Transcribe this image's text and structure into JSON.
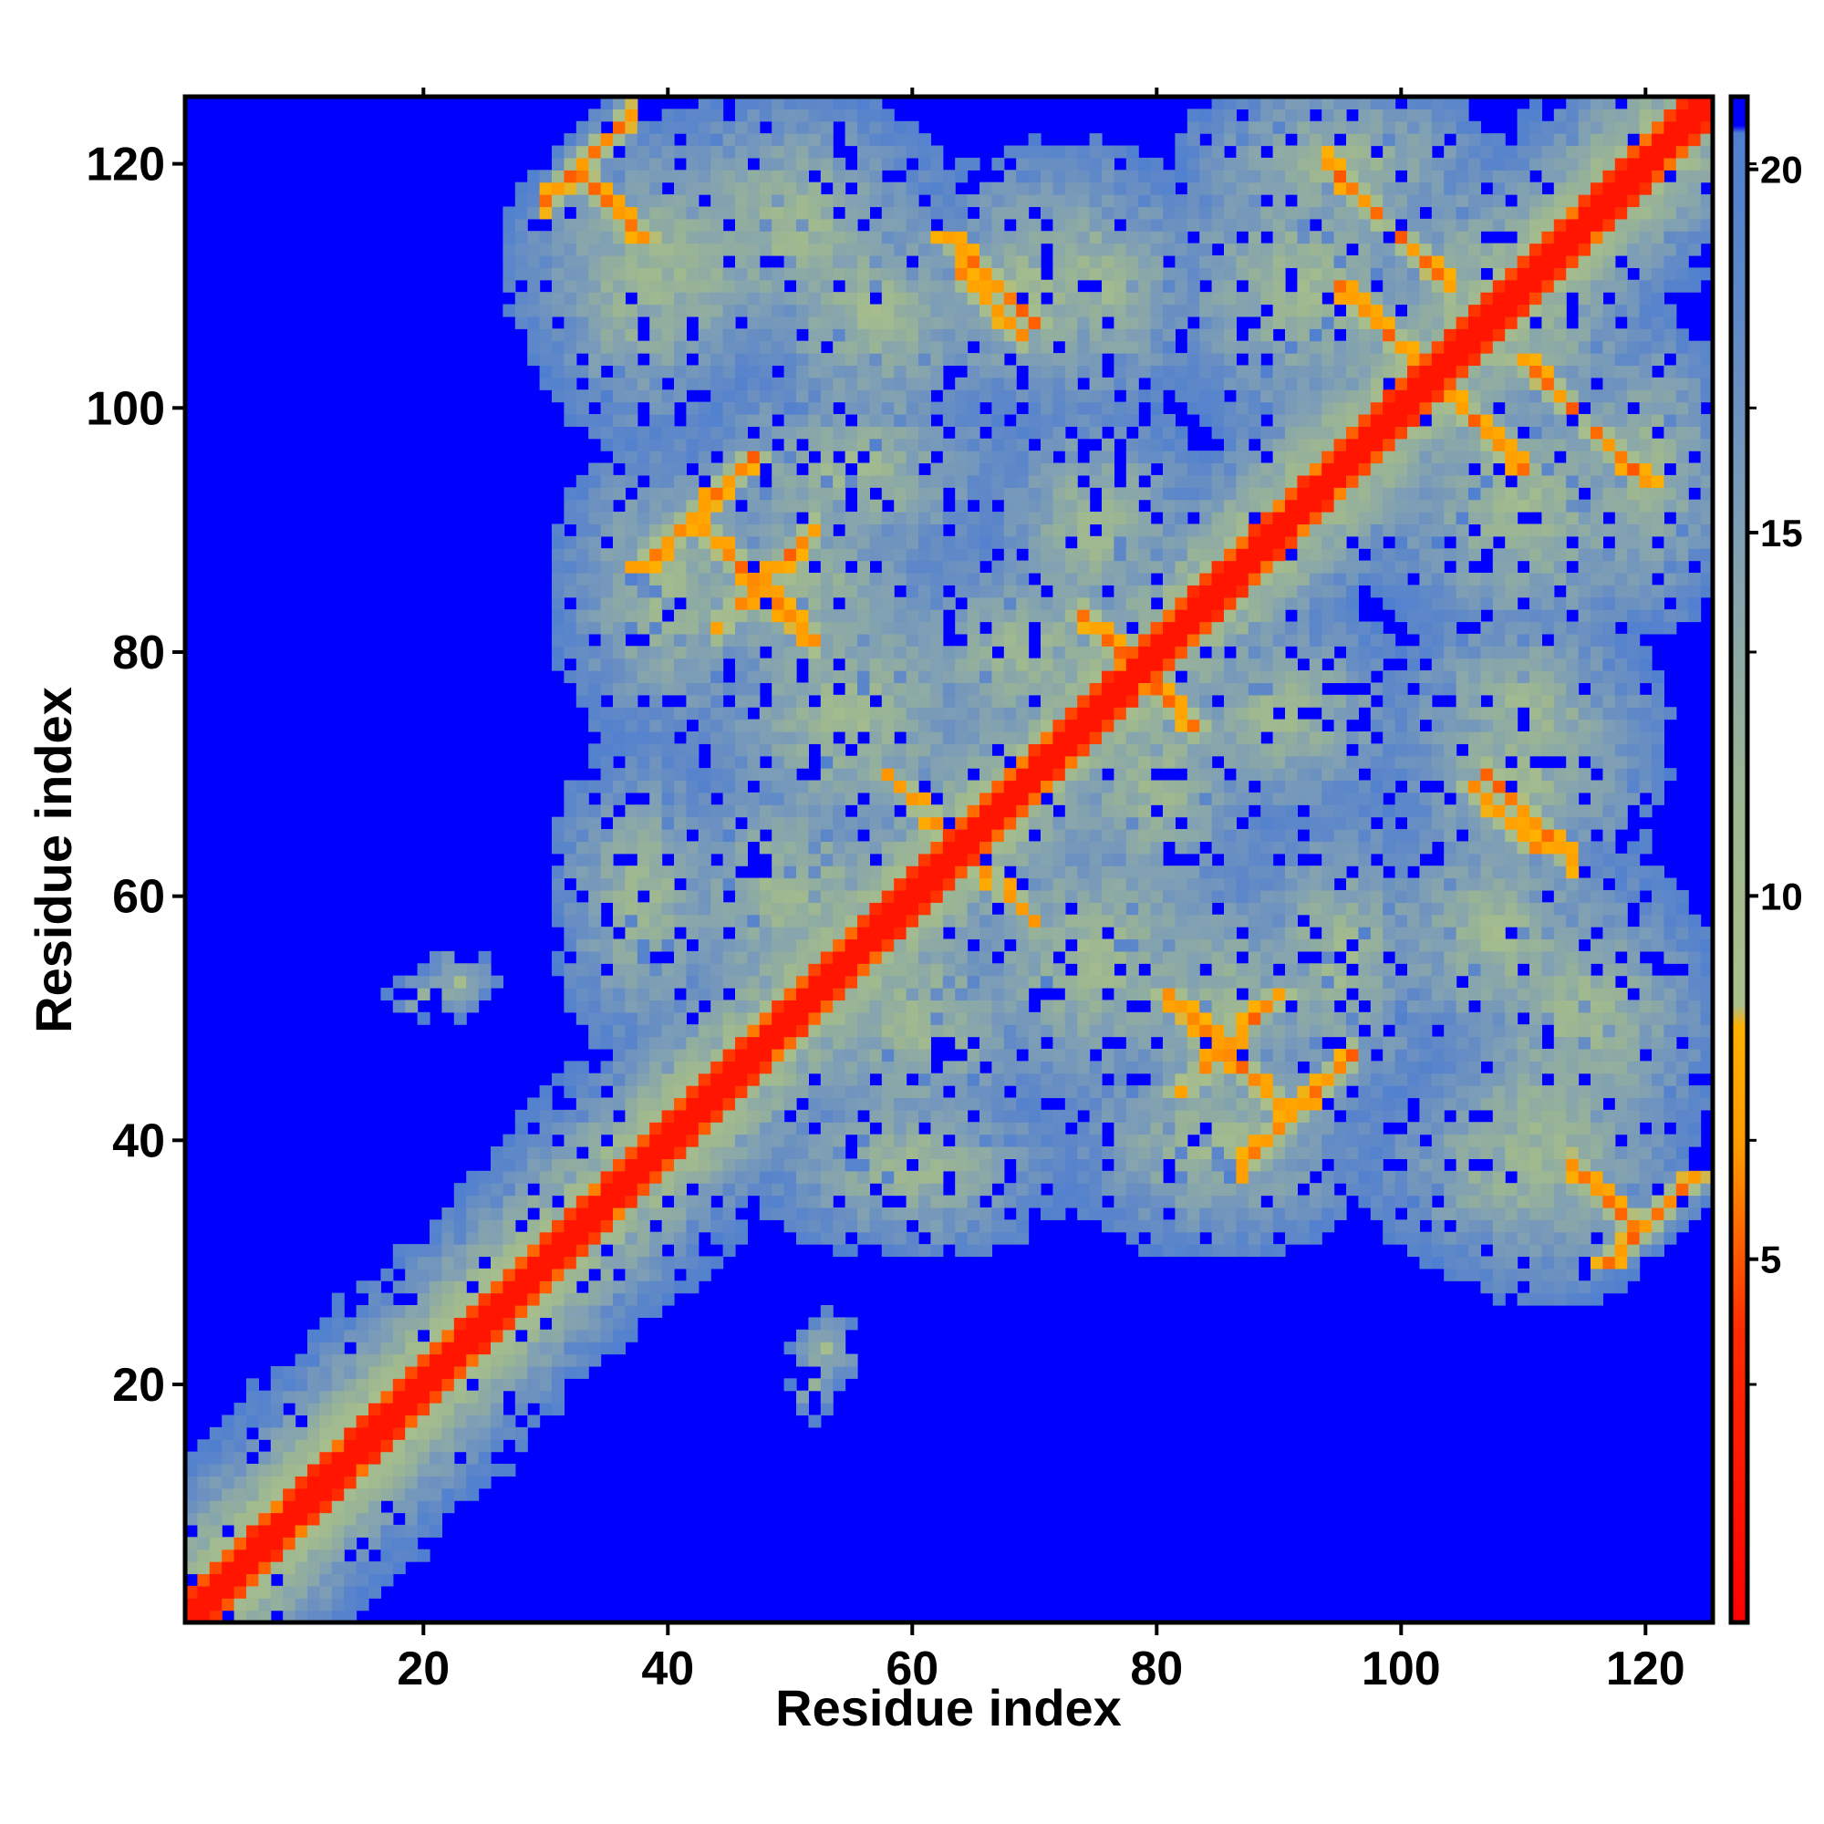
{
  "chart_data": {
    "type": "heatmap",
    "title": "",
    "xlabel": "Residue index",
    "ylabel": "Residue index",
    "n_residues": 125,
    "xlim": [
      0.5,
      125.5
    ],
    "ylim": [
      0.5,
      125.5
    ],
    "x_ticks": [
      20,
      40,
      60,
      80,
      100,
      120
    ],
    "y_ticks": [
      20,
      40,
      60,
      80,
      100,
      120
    ],
    "x_tick_labels": [
      "20",
      "40",
      "60",
      "80",
      "100",
      120
    ],
    "y_tick_labels": [
      "20",
      "40",
      "60",
      "80",
      "100",
      "120"
    ],
    "colorbar": {
      "range": [
        0,
        21
      ],
      "ticks": [
        5,
        10,
        15,
        20
      ],
      "tick_labels": [
        "5",
        "10",
        "15",
        "20"
      ],
      "stops": [
        {
          "value": 0,
          "color": "#ff0000"
        },
        {
          "value": 4,
          "color": "#ff2a00"
        },
        {
          "value": 6.5,
          "color": "#ff9900"
        },
        {
          "value": 8.2,
          "color": "#ffb000"
        },
        {
          "value": 8.5,
          "color": "#a9bf8c"
        },
        {
          "value": 11,
          "color": "#9fb890"
        },
        {
          "value": 15,
          "color": "#7f9fb5"
        },
        {
          "value": 18,
          "color": "#5f88c8"
        },
        {
          "value": 20.5,
          "color": "#4f7fd0"
        },
        {
          "value": 20.6,
          "color": "#0000ff"
        },
        {
          "value": 21,
          "color": "#0000ff"
        }
      ]
    },
    "grid": false,
    "legend": "colorbar-right",
    "contact_bands": [
      {
        "kind": "diagonal",
        "width": 1.6
      },
      {
        "kind": "anti",
        "sum": 152,
        "i_range": [
          33,
          38
        ],
        "strength": 0.9
      },
      {
        "kind": "parallel",
        "offset": 49,
        "i_range": [
          38,
          47
        ],
        "strength": 0.8
      },
      {
        "kind": "anti",
        "sum": 177,
        "i_range": [
          63,
          70
        ],
        "strength": 0.8
      },
      {
        "kind": "anti",
        "sum": 205,
        "i_range": [
          100,
          110
        ],
        "strength": 0.7
      },
      {
        "kind": "anti",
        "sum": 214,
        "i_range": [
          110,
          120
        ],
        "strength": 0.6
      },
      {
        "kind": "anti",
        "sum": 157,
        "i_range": [
          74,
          83
        ],
        "strength": 0.7
      },
      {
        "kind": "parallel",
        "offset": -38,
        "i_range": [
          82,
          90
        ],
        "strength": 0.75
      },
      {
        "kind": "anti",
        "sum": 133,
        "i_range": [
          81,
          90
        ],
        "strength": 0.8
      },
      {
        "kind": "anti",
        "sum": 175,
        "i_range": [
          106,
          111
        ],
        "strength": 0.8
      },
      {
        "kind": "parallel",
        "offset": -87,
        "i_range": [
          117,
          124
        ],
        "strength": 0.85
      },
      {
        "kind": "anti",
        "sum": 128,
        "i_range": [
          58,
          68
        ],
        "strength": 0.5
      }
    ],
    "contact_clouds": [
      {
        "cx": 40,
        "cy": 112,
        "rx": 14,
        "ry": 12
      },
      {
        "cx": 57,
        "cy": 108,
        "rx": 12,
        "ry": 12
      },
      {
        "cx": 75,
        "cy": 110,
        "rx": 10,
        "ry": 12
      },
      {
        "cx": 92,
        "cy": 110,
        "rx": 14,
        "ry": 14
      },
      {
        "cx": 110,
        "cy": 108,
        "rx": 12,
        "ry": 12
      },
      {
        "cx": 120,
        "cy": 95,
        "rx": 8,
        "ry": 14
      },
      {
        "cx": 50,
        "cy": 85,
        "rx": 14,
        "ry": 10
      },
      {
        "cx": 70,
        "cy": 80,
        "rx": 14,
        "ry": 10
      },
      {
        "cx": 90,
        "cy": 75,
        "rx": 12,
        "ry": 10
      },
      {
        "cx": 110,
        "cy": 70,
        "rx": 12,
        "ry": 12
      },
      {
        "cx": 50,
        "cy": 60,
        "rx": 14,
        "ry": 12
      },
      {
        "cx": 75,
        "cy": 55,
        "rx": 14,
        "ry": 14
      },
      {
        "cx": 95,
        "cy": 55,
        "rx": 10,
        "ry": 14
      },
      {
        "cx": 115,
        "cy": 50,
        "rx": 12,
        "ry": 14
      },
      {
        "cx": 60,
        "cy": 38,
        "rx": 14,
        "ry": 8
      },
      {
        "cx": 85,
        "cy": 40,
        "rx": 14,
        "ry": 10
      },
      {
        "cx": 110,
        "cy": 38,
        "rx": 14,
        "ry": 10
      },
      {
        "cx": 20,
        "cy": 20,
        "rx": 8,
        "ry": 8
      },
      {
        "cx": 20,
        "cy": 52,
        "rx": 3,
        "ry": 2
      },
      {
        "cx": 53,
        "cy": 23,
        "rx": 3,
        "ry": 3
      }
    ]
  }
}
